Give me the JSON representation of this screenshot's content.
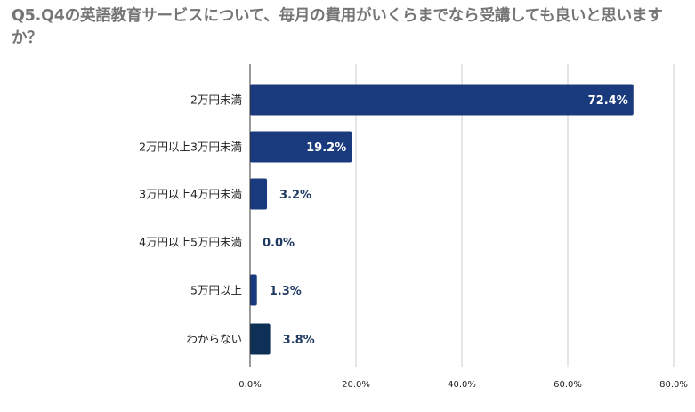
{
  "chart_data": {
    "type": "bar",
    "orientation": "horizontal",
    "title": "Q5.Q4の英語教育サービスについて、毎月の費用がいくらまでなら受講しても良いと思いますか？",
    "categories": [
      "2万円未満",
      "2万円以上3万円未満",
      "3万円以上4万円未満",
      "4万円以上5万円未満",
      "5万円以上",
      "わからない"
    ],
    "values": [
      72.4,
      19.2,
      3.2,
      0.0,
      1.3,
      3.8
    ],
    "value_labels": [
      "72.4%",
      "19.2%",
      "3.2%",
      "0.0%",
      "1.3%",
      "3.8%"
    ],
    "x_ticks": [
      "0.0%",
      "20.0%",
      "40.0%",
      "60.0%",
      "80.0%"
    ],
    "xlim": [
      0,
      80
    ],
    "grid": "vertical",
    "colors": {
      "bar": "#1a3a7e",
      "bar_last": "#0e3057",
      "label_outside": "#1f3a60",
      "label_inside": "#ffffff",
      "grid": "#cccccc",
      "title": "#757575"
    }
  }
}
